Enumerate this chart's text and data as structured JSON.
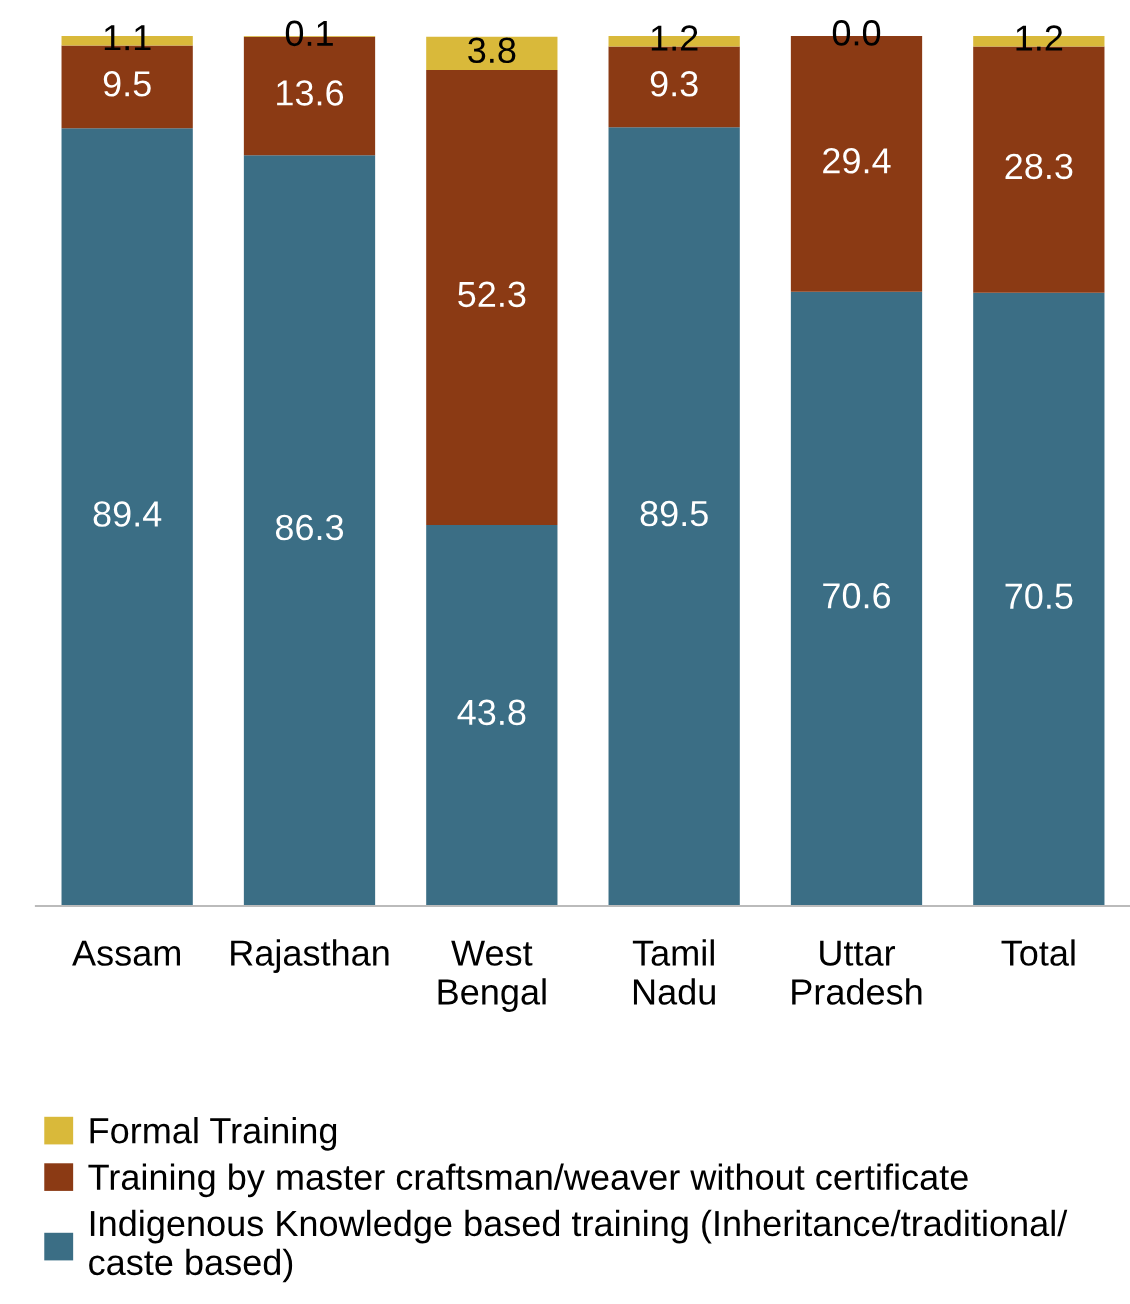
{
  "chart_data": {
    "type": "bar",
    "stacked": true,
    "data_labels": true,
    "legend": "bottom",
    "grid": false,
    "categories": [
      "Assam",
      "Rajasthan",
      "West\nBengal",
      "Tamil\nNadu",
      "Uttar\nPradesh",
      "Total"
    ],
    "ylim": [
      0,
      100
    ],
    "series": [
      {
        "name": "Indigenous Knowledge based training (Inheritance/traditional/\ncaste based)",
        "color": "#3b6e85",
        "values": [
          89.4,
          86.3,
          43.8,
          89.5,
          70.6,
          70.5
        ]
      },
      {
        "name": "Training by master craftsman/weaver without certificate",
        "color": "#8b3a14",
        "values": [
          9.5,
          13.6,
          52.3,
          9.3,
          29.4,
          28.3
        ]
      },
      {
        "name": "Formal Training",
        "color": "#d9b93a",
        "values": [
          1.1,
          0.1,
          3.8,
          1.2,
          0.0,
          1.2
        ],
        "value_labels": [
          "1.1",
          "0.1",
          "3.8",
          "1.2",
          "0.0",
          "1.2"
        ]
      }
    ]
  }
}
